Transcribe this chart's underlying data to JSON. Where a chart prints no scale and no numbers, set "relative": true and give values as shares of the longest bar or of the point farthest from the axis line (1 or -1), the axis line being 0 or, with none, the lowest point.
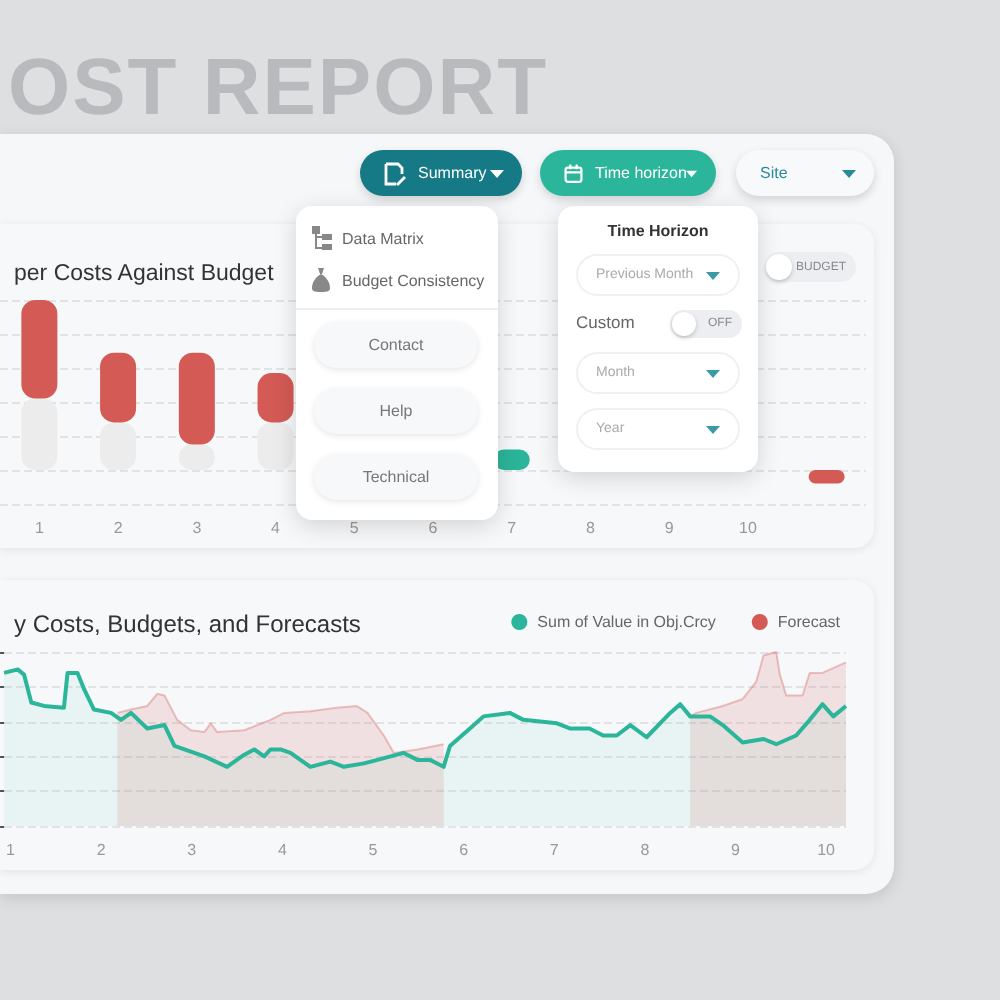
{
  "chart_data": [
    {
      "type": "bar",
      "title": "per Costs Against Budget",
      "categories": [
        "1",
        "2",
        "3",
        "4",
        "5",
        "6",
        "7",
        "8",
        "9",
        "10",
        null
      ],
      "relative": true,
      "stacked": true,
      "grid": "y",
      "series": [
        {
          "color": "#ececec",
          "values": [
            0.42,
            0.28,
            0.15,
            0.28,
            null,
            null,
            null,
            null,
            null,
            null,
            null
          ]
        },
        {
          "color": "#d35a55",
          "values": [
            0.58,
            0.41,
            0.54,
            0.29,
            null,
            null,
            null,
            null,
            null,
            null,
            -0.08
          ]
        },
        {
          "color": "#2bb59a",
          "values": [
            null,
            null,
            null,
            null,
            null,
            null,
            0.12,
            null,
            null,
            null,
            null
          ]
        }
      ]
    },
    {
      "type": "area",
      "title": "y Costs, Budgets, and Forecasts",
      "relative": true,
      "xlim": [
        0.93,
        10.22
      ],
      "xticks": [
        1,
        2,
        3,
        4,
        5,
        6,
        7,
        8,
        9,
        10
      ],
      "grid": "y",
      "legend": "top right",
      "marker": "none",
      "series": [
        {
          "name": "Sum of Value in Obj.Crcy",
          "color": "#2bb59a",
          "x": [
            0.93,
            1.08,
            1.15,
            1.23,
            1.37,
            1.59,
            1.63,
            1.74,
            1.81,
            1.92,
            2.11,
            2.22,
            2.33,
            2.51,
            2.7,
            2.81,
            3.14,
            3.39,
            3.58,
            3.69,
            3.8,
            3.87,
            3.98,
            4.09,
            4.31,
            4.53,
            4.68,
            4.9,
            5.05,
            5.34,
            5.49,
            5.63,
            5.78,
            5.85,
            6.07,
            6.22,
            6.51,
            6.66,
            7.03,
            7.18,
            7.39,
            7.54,
            7.69,
            7.84,
            8.02,
            8.28,
            8.39,
            8.5,
            8.72,
            8.86,
            9.08,
            9.31,
            9.45,
            9.67,
            9.82,
            9.96,
            10.08,
            10.22
          ],
          "values": [
            0.88,
            0.9,
            0.87,
            0.71,
            0.69,
            0.68,
            0.88,
            0.88,
            0.79,
            0.67,
            0.65,
            0.61,
            0.65,
            0.56,
            0.58,
            0.46,
            0.4,
            0.34,
            0.41,
            0.44,
            0.4,
            0.44,
            0.44,
            0.42,
            0.34,
            0.37,
            0.34,
            0.36,
            0.38,
            0.42,
            0.38,
            0.38,
            0.34,
            0.46,
            0.56,
            0.63,
            0.65,
            0.61,
            0.59,
            0.56,
            0.56,
            0.52,
            0.52,
            0.58,
            0.51,
            0.65,
            0.7,
            0.63,
            0.63,
            0.58,
            0.48,
            0.5,
            0.47,
            0.52,
            0.61,
            0.7,
            0.63,
            0.69
          ]
        },
        {
          "name": "Forecast",
          "color": "#d35a55",
          "x": [
            2.18,
            2.33,
            2.51,
            2.62,
            2.7,
            2.84,
            2.99,
            3.14,
            3.21,
            3.28,
            3.58,
            3.87,
            4.02,
            4.31,
            4.6,
            4.82,
            4.94,
            5.12,
            5.23,
            5.49,
            5.78,
            7.0,
            8.5,
            8.57,
            8.86,
            9.08,
            9.23,
            9.31,
            9.45,
            9.49,
            9.56,
            9.74,
            9.82,
            9.96,
            10.22
          ],
          "values": [
            0.65,
            0.67,
            0.69,
            0.76,
            0.75,
            0.61,
            0.55,
            0.54,
            0.59,
            0.54,
            0.55,
            0.61,
            0.65,
            0.66,
            0.68,
            0.69,
            0.65,
            0.52,
            0.42,
            0.44,
            0.47,
            null,
            0.63,
            0.65,
            0.69,
            0.73,
            0.83,
            0.98,
            1.0,
            0.87,
            0.75,
            0.75,
            0.88,
            0.88,
            0.94
          ]
        }
      ]
    },
    {
      "type": "other",
      "title": "OST REPORT",
      "annotations": [
        "Summary",
        "Time horizon",
        "Site",
        "Data Matrix",
        "Budget Consistency",
        "Contact",
        "Help",
        "Technical",
        "Time Horizon",
        "Previous Month",
        "Custom",
        "OFF",
        "Month",
        "Year",
        "BUDGET"
      ]
    }
  ]
}
